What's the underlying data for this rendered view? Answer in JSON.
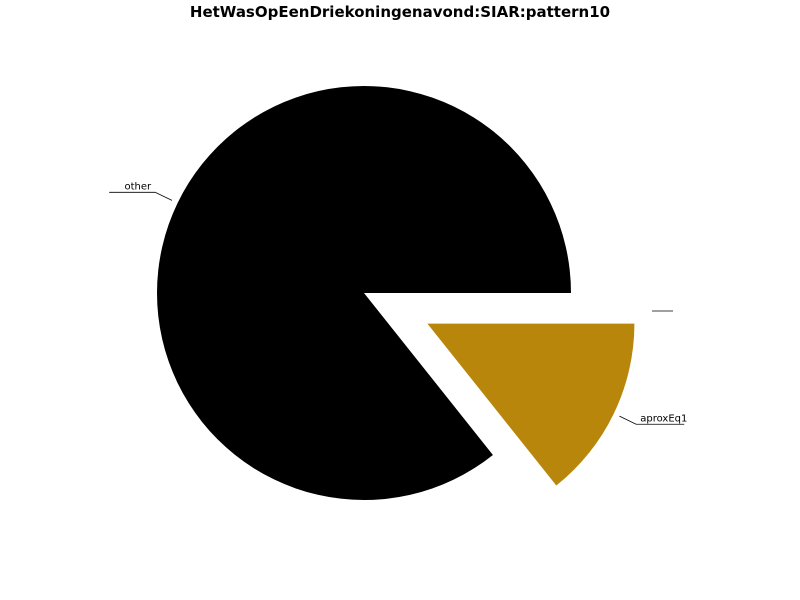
{
  "chart_data": {
    "type": "pie",
    "title": "HetWasOpEenDriekoningenavond:SIAR:pattern10",
    "slices": [
      {
        "label": "other",
        "value": 85.7,
        "color": "#000000",
        "exploded": false
      },
      {
        "label": "aproxEq1",
        "value": 14.3,
        "color": "#b8860b",
        "exploded": true
      }
    ],
    "start_angle": "0 deg (3 o'clock), counterclockwise for first slice",
    "legend": "none"
  }
}
